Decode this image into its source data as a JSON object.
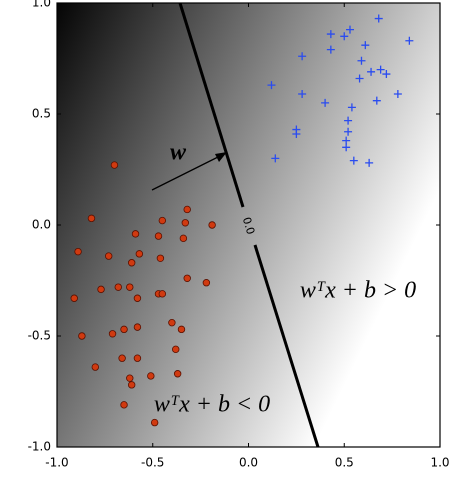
{
  "chart_data": {
    "type": "scatter",
    "xlim": [
      -1.0,
      1.0
    ],
    "ylim": [
      -1.0,
      1.0
    ],
    "xticks": [
      {
        "value": -1.0,
        "label": "-1.0"
      },
      {
        "value": -0.5,
        "label": "-0.5"
      },
      {
        "value": 0.0,
        "label": "0.0"
      },
      {
        "value": 0.5,
        "label": "0.5"
      },
      {
        "value": 1.0,
        "label": "1.0"
      }
    ],
    "yticks": [
      {
        "value": -1.0,
        "label": "-1.0"
      },
      {
        "value": -0.5,
        "label": "-0.5"
      },
      {
        "value": 0.0,
        "label": "0.0"
      },
      {
        "value": 0.5,
        "label": "0.5"
      },
      {
        "value": 1.0,
        "label": "1.0"
      }
    ],
    "contour_label": "0.0",
    "arrow_label": "w",
    "region_labels": [
      "wᵀx + b > 0",
      "wᵀx + b < 0"
    ],
    "series": [
      {
        "color": "#d03a10",
        "marker": "o",
        "x": [
          -0.7,
          -0.82,
          -0.89,
          -0.91,
          -0.87,
          -0.8,
          -0.65,
          -0.49,
          -0.32,
          -0.33,
          -0.45,
          -0.19,
          -0.59,
          -0.47,
          -0.34,
          -0.73,
          -0.57,
          -0.46,
          -0.61,
          -0.32,
          -0.22,
          -0.77,
          -0.68,
          -0.62,
          -0.47,
          -0.45,
          -0.58,
          -0.71,
          -0.65,
          -0.58,
          -0.4,
          -0.35,
          -0.66,
          -0.58,
          -0.38,
          -0.62,
          -0.51,
          -0.37,
          -0.61
        ],
        "y": [
          0.27,
          0.03,
          -0.12,
          -0.33,
          -0.5,
          -0.64,
          -0.81,
          -0.89,
          0.07,
          0.01,
          0.02,
          0.0,
          -0.04,
          -0.05,
          -0.06,
          -0.14,
          -0.13,
          -0.15,
          -0.17,
          -0.24,
          -0.26,
          -0.29,
          -0.28,
          -0.28,
          -0.31,
          -0.31,
          -0.33,
          -0.49,
          -0.47,
          -0.46,
          -0.44,
          -0.47,
          -0.6,
          -0.6,
          -0.56,
          -0.69,
          -0.68,
          -0.67,
          -0.72
        ]
      },
      {
        "color": "#2a4cf0",
        "marker": "+",
        "x": [
          0.53,
          0.68,
          0.43,
          0.5,
          0.43,
          0.61,
          0.84,
          0.28,
          0.59,
          0.64,
          0.69,
          0.72,
          0.58,
          0.12,
          0.28,
          0.4,
          0.67,
          0.78,
          0.54,
          0.25,
          0.25,
          0.52,
          0.51,
          0.51,
          0.14,
          0.55,
          0.63,
          0.52
        ],
        "y": [
          0.88,
          0.93,
          0.86,
          0.85,
          0.79,
          0.81,
          0.83,
          0.76,
          0.74,
          0.69,
          0.7,
          0.68,
          0.66,
          0.63,
          0.59,
          0.55,
          0.56,
          0.59,
          0.53,
          0.43,
          0.41,
          0.42,
          0.38,
          0.35,
          0.3,
          0.29,
          0.28,
          0.47
        ]
      }
    ]
  }
}
